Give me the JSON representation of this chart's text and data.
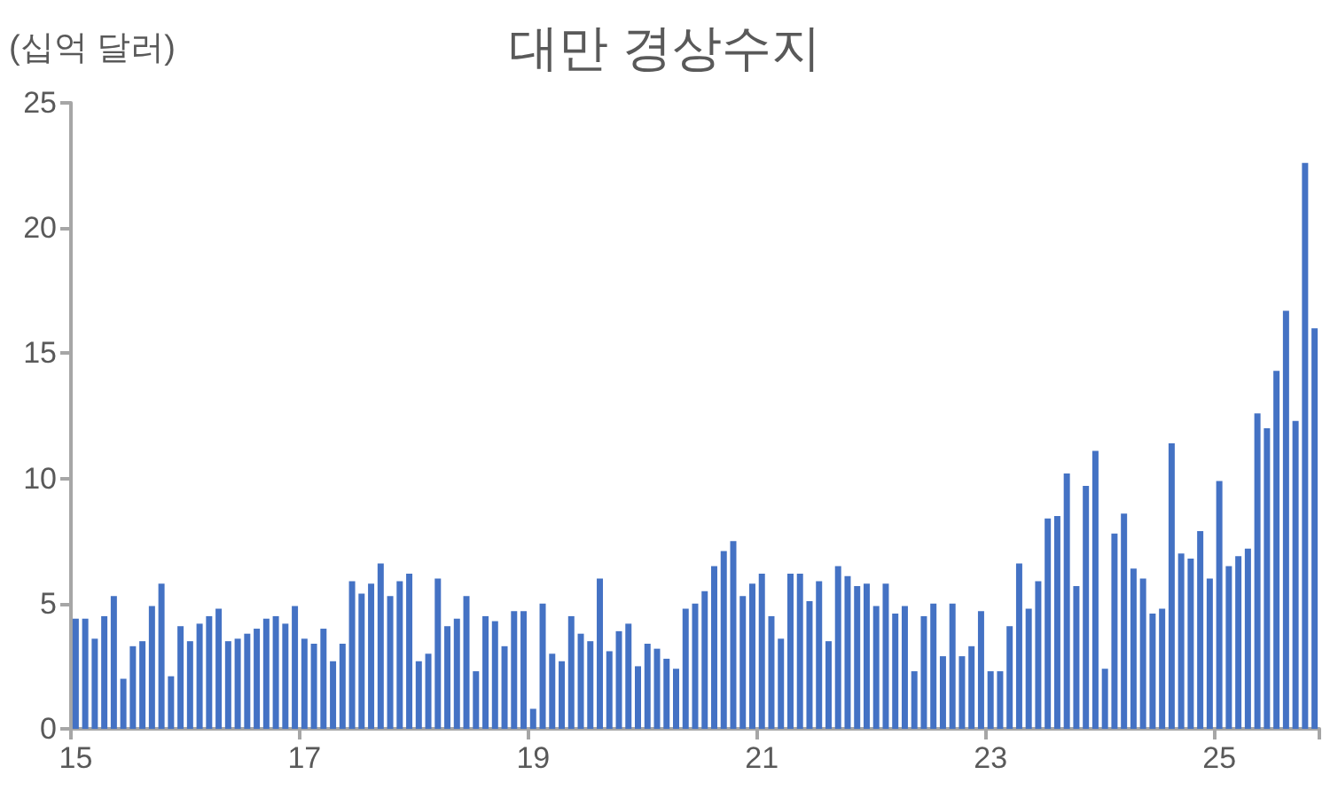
{
  "chart_data": {
    "type": "bar",
    "title": "대만 경상수지",
    "ylabel": "(십억 달러)",
    "color": "#4472c4",
    "categories": [
      "15",
      null,
      null,
      null,
      null,
      null,
      null,
      null,
      null,
      null,
      null,
      null,
      null,
      null,
      null,
      null,
      null,
      null,
      null,
      null,
      null,
      null,
      null,
      null,
      "17",
      null,
      null,
      null,
      null,
      null,
      null,
      null,
      null,
      null,
      null,
      null,
      null,
      null,
      null,
      null,
      null,
      null,
      null,
      null,
      null,
      null,
      null,
      null,
      "19",
      null,
      null,
      null,
      null,
      null,
      null,
      null,
      null,
      null,
      null,
      null,
      null,
      null,
      null,
      null,
      null,
      null,
      null,
      null,
      null,
      null,
      null,
      null,
      "21",
      null,
      null,
      null,
      null,
      null,
      null,
      null,
      null,
      null,
      null,
      null,
      null,
      null,
      null,
      null,
      null,
      null,
      null,
      null,
      null,
      null,
      null,
      null,
      "23",
      null,
      null,
      null,
      null,
      null,
      null,
      null,
      null,
      null,
      null,
      null,
      null,
      null,
      null,
      null,
      null,
      null,
      null,
      null,
      null,
      null,
      null,
      null,
      "25",
      null,
      null,
      null,
      null,
      null,
      null,
      null,
      null,
      null,
      null
    ],
    "values": [
      4.4,
      4.4,
      3.6,
      4.5,
      5.3,
      2.0,
      3.3,
      3.5,
      4.9,
      5.8,
      2.1,
      4.1,
      3.5,
      4.2,
      4.5,
      4.8,
      3.5,
      3.6,
      3.8,
      4.0,
      4.4,
      4.5,
      4.2,
      4.9,
      3.6,
      3.4,
      4.0,
      2.7,
      3.4,
      5.9,
      5.4,
      5.8,
      6.6,
      5.3,
      5.9,
      6.2,
      2.7,
      3.0,
      6.0,
      4.1,
      4.4,
      5.3,
      2.3,
      4.5,
      4.3,
      3.3,
      4.7,
      4.7,
      0.8,
      5.0,
      3.0,
      2.7,
      4.5,
      3.8,
      3.5,
      6.0,
      3.1,
      3.9,
      4.2,
      2.5,
      3.4,
      3.2,
      2.8,
      2.4,
      4.8,
      5.0,
      5.5,
      6.5,
      7.1,
      7.5,
      5.3,
      5.8,
      6.2,
      4.5,
      3.6,
      6.2,
      6.2,
      5.1,
      5.9,
      3.5,
      6.5,
      6.1,
      5.7,
      5.8,
      4.9,
      5.8,
      4.6,
      4.9,
      2.3,
      4.5,
      5.0,
      2.9,
      5.0,
      2.9,
      3.3,
      4.7,
      2.3,
      2.3,
      4.1,
      6.6,
      4.8,
      5.9,
      8.4,
      8.5,
      10.2,
      5.7,
      9.7,
      11.1,
      2.4,
      7.8,
      8.6,
      6.4,
      6.0,
      4.6,
      4.8,
      11.4,
      7.0,
      6.8,
      7.9,
      6.0,
      9.9,
      6.5,
      6.9,
      7.2,
      12.6,
      12.0,
      14.3,
      16.7,
      12.3,
      22.6,
      16.0
    ],
    "ylim": [
      0,
      25
    ],
    "yticks": [
      0,
      5,
      10,
      15,
      20,
      25
    ],
    "grid": false
  }
}
